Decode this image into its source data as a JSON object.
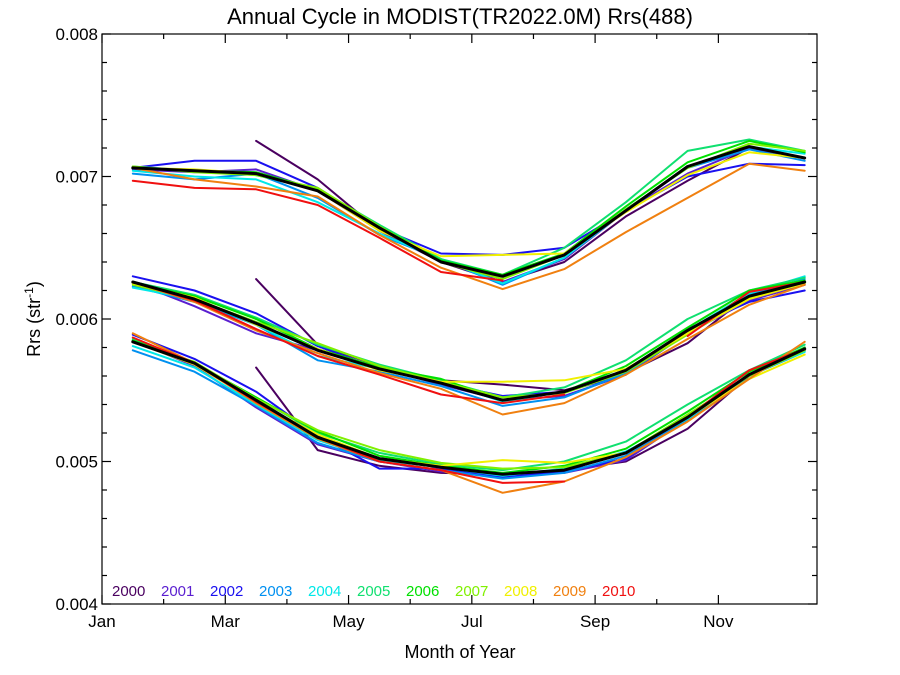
{
  "chart_data": {
    "type": "line",
    "title": "Annual Cycle in MODIST(TR2022.0M) Rrs(488)",
    "xlabel": "Month of Year",
    "ylabel_main": "Rrs (str",
    "ylabel_sup": "-1",
    "ylabel_close": ")",
    "xlim": [
      1,
      12.6
    ],
    "ylim": [
      0.004,
      0.008
    ],
    "x_ticks": [
      {
        "value": 1,
        "label": "Jan"
      },
      {
        "value": 3,
        "label": "Mar"
      },
      {
        "value": 5,
        "label": "May"
      },
      {
        "value": 7,
        "label": "Jul"
      },
      {
        "value": 9,
        "label": "Sep"
      },
      {
        "value": 11,
        "label": "Nov"
      }
    ],
    "y_ticks": [
      {
        "value": 0.004,
        "label": "0.004"
      },
      {
        "value": 0.005,
        "label": "0.005"
      },
      {
        "value": 0.006,
        "label": "0.006"
      },
      {
        "value": 0.007,
        "label": "0.007"
      },
      {
        "value": 0.008,
        "label": "0.008"
      }
    ],
    "x": [
      1.5,
      2.5,
      3.5,
      4.5,
      5.5,
      6.5,
      7.5,
      8.5,
      9.5,
      10.5,
      11.5,
      12.4
    ],
    "groups": [
      "upper",
      "middle",
      "lower"
    ],
    "series": [
      {
        "name": "2000",
        "color": "#4a0060",
        "upper": [
          null,
          null,
          0.00725,
          0.00698,
          0.00662,
          0.0064,
          0.00626,
          0.0064,
          0.00672,
          0.00697,
          0.0072,
          0.00713
        ],
        "middle": [
          null,
          null,
          0.00628,
          0.00582,
          0.00567,
          0.00557,
          0.00554,
          0.0055,
          0.00562,
          0.00583,
          0.00617,
          0.00624
        ],
        "lower": [
          null,
          null,
          0.00566,
          0.00508,
          0.00497,
          0.00492,
          0.00491,
          0.00494,
          0.005,
          0.00523,
          0.0056,
          0.0058
        ]
      },
      {
        "name": "2001",
        "color": "#5a1ed0",
        "upper": [
          0.00705,
          0.00703,
          0.00705,
          0.0069,
          0.00662,
          0.00641,
          0.00626,
          0.00642,
          0.00676,
          0.00702,
          0.0072,
          0.00713
        ],
        "middle": [
          0.00626,
          0.00609,
          0.0059,
          0.00578,
          0.00566,
          0.00554,
          0.00543,
          0.00546,
          0.00561,
          0.0059,
          0.00613,
          0.00624
        ],
        "lower": [
          0.00585,
          0.00567,
          0.00538,
          0.00512,
          0.005,
          0.00493,
          0.00491,
          0.00492,
          0.00501,
          0.0053,
          0.0056,
          0.00578
        ]
      },
      {
        "name": "2002",
        "color": "#1a10f0",
        "upper": [
          0.00706,
          0.00711,
          0.00711,
          0.00692,
          0.00664,
          0.00646,
          0.00645,
          0.0065,
          0.00676,
          0.007,
          0.00709,
          0.00708
        ],
        "middle": [
          0.0063,
          0.0062,
          0.00604,
          0.00581,
          0.00565,
          0.00555,
          0.00546,
          0.00549,
          0.00561,
          0.00593,
          0.00612,
          0.0062
        ],
        "lower": [
          0.00589,
          0.00572,
          0.00549,
          0.00518,
          0.00495,
          0.00495,
          0.00489,
          0.00493,
          0.00502,
          0.00532,
          0.00561,
          0.00578
        ]
      },
      {
        "name": "2003",
        "color": "#0090f0",
        "upper": [
          0.00702,
          0.00698,
          0.00702,
          0.00685,
          0.00659,
          0.00642,
          0.00624,
          0.00643,
          0.00677,
          0.00706,
          0.00719,
          0.00711
        ],
        "middle": [
          0.00623,
          0.00612,
          0.00596,
          0.00571,
          0.00563,
          0.00553,
          0.00539,
          0.00545,
          0.00562,
          0.0059,
          0.00617,
          0.00628
        ],
        "lower": [
          0.00578,
          0.00563,
          0.00539,
          0.00513,
          0.005,
          0.00494,
          0.00488,
          0.00492,
          0.00504,
          0.00529,
          0.0056,
          0.00577
        ]
      },
      {
        "name": "2004",
        "color": "#00e8e8",
        "upper": [
          0.00704,
          0.007,
          0.00698,
          0.00682,
          0.0066,
          0.00642,
          0.00625,
          0.00643,
          0.00676,
          0.00707,
          0.00721,
          0.00716
        ],
        "middle": [
          0.00622,
          0.00614,
          0.00596,
          0.00574,
          0.00565,
          0.00556,
          0.00542,
          0.00549,
          0.00563,
          0.00592,
          0.00618,
          0.0063
        ],
        "lower": [
          0.00581,
          0.00566,
          0.0054,
          0.00515,
          0.00501,
          0.00496,
          0.0049,
          0.00495,
          0.00507,
          0.0053,
          0.00561,
          0.00577
        ]
      },
      {
        "name": "2005",
        "color": "#10e070",
        "upper": [
          0.00707,
          0.00704,
          0.00701,
          0.00691,
          0.00666,
          0.00642,
          0.00631,
          0.0065,
          0.00682,
          0.00718,
          0.00726,
          0.00718
        ],
        "middle": [
          0.00626,
          0.00617,
          0.00601,
          0.00582,
          0.00568,
          0.00557,
          0.00545,
          0.00552,
          0.00571,
          0.006,
          0.0062,
          0.00629
        ],
        "lower": [
          0.00586,
          0.00569,
          0.00545,
          0.0052,
          0.00506,
          0.00498,
          0.00494,
          0.005,
          0.00514,
          0.0054,
          0.00564,
          0.00582
        ]
      },
      {
        "name": "2006",
        "color": "#00e000",
        "upper": [
          0.00706,
          0.00704,
          0.00703,
          0.00691,
          0.00665,
          0.00641,
          0.00631,
          0.00646,
          0.00679,
          0.0071,
          0.00725,
          0.00717
        ],
        "middle": [
          0.00625,
          0.00616,
          0.006,
          0.00579,
          0.00566,
          0.00558,
          0.00543,
          0.00549,
          0.00567,
          0.00594,
          0.0062,
          0.00627
        ],
        "lower": [
          0.00585,
          0.00569,
          0.00545,
          0.00521,
          0.00504,
          0.00497,
          0.00492,
          0.00497,
          0.00509,
          0.00535,
          0.00563,
          0.0058
        ]
      },
      {
        "name": "2007",
        "color": "#80f000",
        "upper": [
          0.00707,
          0.00703,
          0.00701,
          0.00692,
          0.00665,
          0.0064,
          0.00628,
          0.00645,
          0.00677,
          0.00706,
          0.00723,
          0.00718
        ],
        "middle": [
          0.00624,
          0.00614,
          0.00598,
          0.00583,
          0.00567,
          0.00556,
          0.00545,
          0.00548,
          0.00563,
          0.00589,
          0.00615,
          0.00625
        ],
        "lower": [
          0.00584,
          0.0057,
          0.00544,
          0.00522,
          0.00508,
          0.00499,
          0.00495,
          0.00496,
          0.00506,
          0.00533,
          0.0056,
          0.00578
        ]
      },
      {
        "name": "2008",
        "color": "#f0f000",
        "upper": [
          0.00706,
          0.00705,
          0.00702,
          0.0069,
          0.00662,
          0.00644,
          0.00645,
          0.00646,
          0.00675,
          0.00701,
          0.00717,
          0.00713
        ],
        "middle": [
          0.00625,
          0.00615,
          0.00596,
          0.00579,
          0.00564,
          0.00556,
          0.00556,
          0.00557,
          0.00565,
          0.0059,
          0.00614,
          0.00625
        ],
        "lower": [
          0.00584,
          0.00568,
          0.00542,
          0.00519,
          0.00502,
          0.00497,
          0.00501,
          0.00499,
          0.00506,
          0.00531,
          0.00558,
          0.00575
        ]
      },
      {
        "name": "2009",
        "color": "#f08010",
        "upper": [
          0.00706,
          0.00698,
          0.00693,
          0.00686,
          0.00659,
          0.00636,
          0.00621,
          0.00635,
          0.00661,
          0.00685,
          0.00709,
          0.00704
        ],
        "middle": [
          0.00626,
          0.00612,
          0.00592,
          0.00576,
          0.00562,
          0.00551,
          0.00533,
          0.00541,
          0.00561,
          0.00586,
          0.0061,
          0.00624
        ],
        "lower": [
          0.0059,
          0.00569,
          0.00541,
          0.00516,
          0.005,
          0.00494,
          0.00478,
          0.00486,
          0.00503,
          0.00528,
          0.00558,
          0.00584
        ]
      },
      {
        "name": "2010",
        "color": "#f01010",
        "upper": [
          0.00697,
          0.00692,
          0.00691,
          0.0068,
          0.00657,
          0.00633,
          0.00627,
          null,
          null,
          null,
          null,
          null
        ],
        "middle": [
          0.00626,
          0.00613,
          0.00593,
          0.00574,
          0.00561,
          0.00547,
          0.00541,
          0.00547,
          null,
          0.00588,
          0.00619,
          0.00626
        ],
        "lower": [
          0.00587,
          0.00569,
          0.00542,
          0.00517,
          0.005,
          0.00494,
          0.00485,
          0.00486,
          null,
          0.00531,
          0.00564,
          0.00579
        ]
      }
    ],
    "mean": {
      "color": "#000000",
      "upper": [
        0.00706,
        0.00704,
        0.00702,
        0.0069,
        0.00664,
        0.0064,
        0.0063,
        0.00645,
        0.00676,
        0.00707,
        0.00721,
        0.00713
      ],
      "middle": [
        0.00626,
        0.00614,
        0.00597,
        0.00578,
        0.00565,
        0.00555,
        0.00543,
        0.00549,
        0.00564,
        0.00592,
        0.00616,
        0.00626
      ],
      "lower": [
        0.00584,
        0.00569,
        0.00543,
        0.00517,
        0.00502,
        0.00496,
        0.00491,
        0.00494,
        0.00506,
        0.00531,
        0.00561,
        0.00579
      ]
    },
    "legend_placement": "bottom-left inside plot",
    "grid": false
  }
}
